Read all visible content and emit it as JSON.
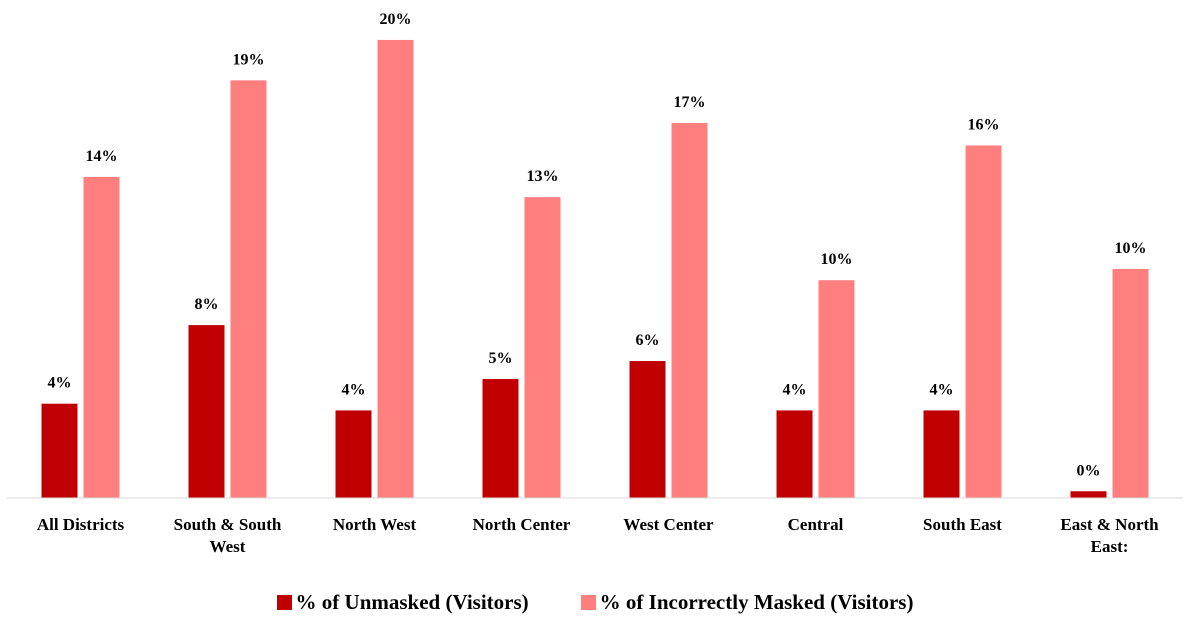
{
  "chart_data": {
    "type": "bar",
    "categories": [
      "All Districts",
      "South & South West",
      "North West",
      "North Center",
      "West Center",
      "Central",
      "South East",
      "East & North East:"
    ],
    "series": [
      {
        "name": "% of Unmasked (Visitors)",
        "color": "#c00000",
        "values": [
          4.2,
          7.7,
          3.9,
          5.3,
          6.1,
          3.9,
          3.9,
          0.3
        ],
        "value_labels": [
          "4%",
          "8%",
          "4%",
          "5%",
          "6%",
          "4%",
          "4%",
          "0%"
        ]
      },
      {
        "name": "% of Incorrectly Masked (Visitors)",
        "color": "#ff7f7f",
        "values": [
          14.3,
          18.6,
          20.4,
          13.4,
          16.7,
          9.7,
          15.7,
          10.2
        ],
        "value_labels": [
          "14%",
          "19%",
          "20%",
          "13%",
          "17%",
          "10%",
          "16%",
          "10%"
        ]
      }
    ],
    "ylim": [
      0,
      22
    ]
  }
}
